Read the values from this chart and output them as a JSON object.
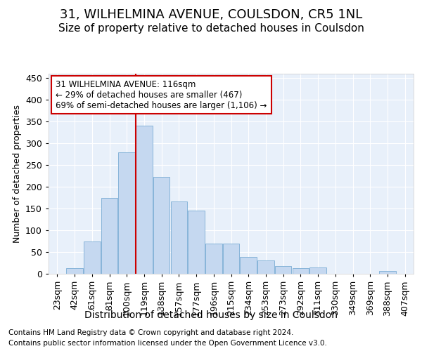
{
  "title": "31, WILHELMINA AVENUE, COULSDON, CR5 1NL",
  "subtitle": "Size of property relative to detached houses in Coulsdon",
  "xlabel": "Distribution of detached houses by size in Coulsdon",
  "ylabel": "Number of detached properties",
  "bar_labels": [
    "23sqm",
    "42sqm",
    "61sqm",
    "81sqm",
    "100sqm",
    "119sqm",
    "138sqm",
    "157sqm",
    "177sqm",
    "196sqm",
    "215sqm",
    "234sqm",
    "253sqm",
    "273sqm",
    "292sqm",
    "311sqm",
    "330sqm",
    "349sqm",
    "369sqm",
    "388sqm",
    "407sqm"
  ],
  "bar_values": [
    0,
    13,
    75,
    175,
    280,
    340,
    222,
    167,
    145,
    70,
    70,
    38,
    30,
    18,
    13,
    15,
    0,
    0,
    0,
    7,
    0
  ],
  "bar_color": "#c5d8f0",
  "bar_edge_color": "#7aadd4",
  "property_line_index": 5,
  "annotation_text": "31 WILHELMINA AVENUE: 116sqm\n← 29% of detached houses are smaller (467)\n69% of semi-detached houses are larger (1,106) →",
  "annotation_box_color": "#ffffff",
  "annotation_box_edge_color": "#cc0000",
  "vline_color": "#cc0000",
  "ylim": [
    0,
    460
  ],
  "yticks": [
    0,
    50,
    100,
    150,
    200,
    250,
    300,
    350,
    400,
    450
  ],
  "footer_line1": "Contains HM Land Registry data © Crown copyright and database right 2024.",
  "footer_line2": "Contains public sector information licensed under the Open Government Licence v3.0.",
  "bg_color": "#ffffff",
  "plot_bg_color": "#e8f0fa",
  "title_fontsize": 13,
  "subtitle_fontsize": 11,
  "tick_fontsize": 9,
  "ylabel_fontsize": 9,
  "xlabel_fontsize": 10,
  "footer_fontsize": 7.5
}
